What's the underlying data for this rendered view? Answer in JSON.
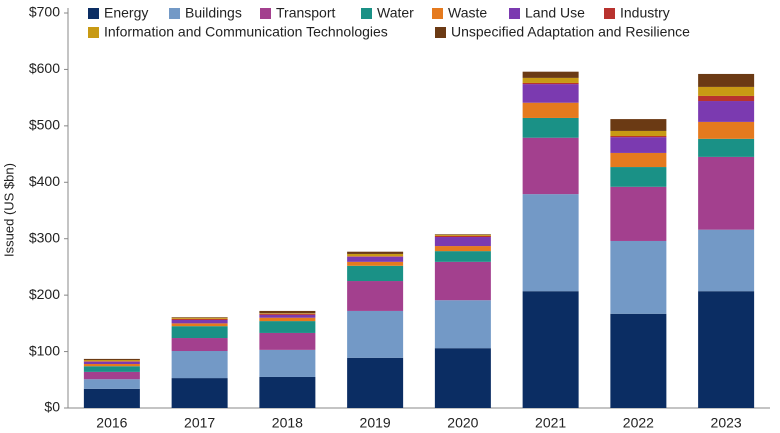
{
  "chart_data": {
    "type": "stacked_bar",
    "y_label": "Issued (US $bn)",
    "categories": [
      "2016",
      "2017",
      "2018",
      "2019",
      "2020",
      "2021",
      "2022",
      "2023"
    ],
    "series": [
      {
        "name": "Energy",
        "color": "#0b2d63",
        "values": [
          34,
          53,
          55,
          89,
          106,
          207,
          167,
          207
        ]
      },
      {
        "name": "Buildings",
        "color": "#7399c6",
        "values": [
          17,
          48,
          48,
          83,
          85,
          172,
          129,
          109
        ]
      },
      {
        "name": "Transport",
        "color": "#a3408e",
        "values": [
          13,
          23,
          30,
          53,
          68,
          100,
          96,
          129
        ]
      },
      {
        "name": "Water",
        "color": "#1a9186",
        "values": [
          10,
          21,
          21,
          27,
          19,
          35,
          35,
          32
        ]
      },
      {
        "name": "Waste",
        "color": "#e57a1e",
        "values": [
          4,
          5,
          6,
          7,
          9,
          27,
          25,
          30
        ]
      },
      {
        "name": "Land Use",
        "color": "#7b3ab0",
        "values": [
          4,
          6,
          5,
          9,
          16,
          33,
          28,
          37
        ]
      },
      {
        "name": "Industry",
        "color": "#b8322e",
        "values": [
          1,
          2,
          2,
          1,
          2,
          2,
          2,
          9
        ]
      },
      {
        "name": "Information and Communication Technologies",
        "color": "#c89a14",
        "values": [
          2,
          2,
          1,
          4,
          2,
          9,
          9,
          16
        ]
      },
      {
        "name": "Unspecified Adaptation and Resilience",
        "color": "#6b3a14",
        "values": [
          2,
          1,
          4,
          4,
          1,
          11,
          21,
          23
        ]
      }
    ],
    "ylim": [
      0,
      700
    ],
    "yticks": [
      {
        "value": 0,
        "label": "$0"
      },
      {
        "value": 100,
        "label": "$100"
      },
      {
        "value": 200,
        "label": "$200"
      },
      {
        "value": 300,
        "label": "$300"
      },
      {
        "value": 400,
        "label": "$400"
      },
      {
        "value": 500,
        "label": "$500"
      },
      {
        "value": 600,
        "label": "$600"
      },
      {
        "value": 700,
        "label": "$700"
      }
    ],
    "grid": false
  }
}
